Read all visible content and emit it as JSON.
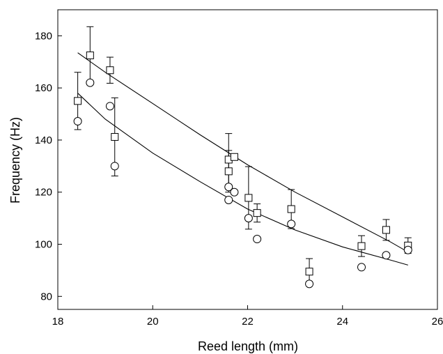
{
  "chart_data": {
    "type": "scatter",
    "title": "",
    "xlabel": "Reed length (mm)",
    "ylabel": "Frequency (Hz)",
    "xlim": [
      18,
      26
    ],
    "ylim": [
      75,
      190
    ],
    "xticks": [
      18,
      20,
      22,
      24,
      26
    ],
    "yticks": [
      80,
      100,
      120,
      140,
      160,
      180
    ],
    "grid": false,
    "legend": "none",
    "series": [
      {
        "marker": "square",
        "points": [
          {
            "x": 18.42,
            "y": 155.0,
            "err": 11.0
          },
          {
            "x": 18.68,
            "y": 172.5,
            "err": 11.0
          },
          {
            "x": 19.1,
            "y": 166.8,
            "err": 5.0
          },
          {
            "x": 19.2,
            "y": 141.2,
            "err": 15.0
          },
          {
            "x": 21.6,
            "y": 132.5,
            "err": 10.0
          },
          {
            "x": 21.6,
            "y": 128.0,
            "err": 8.0
          },
          {
            "x": 21.72,
            "y": 133.5,
            "err": 1.0
          },
          {
            "x": 22.02,
            "y": 117.8,
            "err": 12.0
          },
          {
            "x": 22.2,
            "y": 112.0,
            "err": 3.5
          },
          {
            "x": 22.92,
            "y": 113.5,
            "err": 7.5
          },
          {
            "x": 23.3,
            "y": 89.5,
            "err": 5.0
          },
          {
            "x": 24.4,
            "y": 99.3,
            "err": 4.0
          },
          {
            "x": 24.92,
            "y": 105.5,
            "err": 4.0
          },
          {
            "x": 25.38,
            "y": 99.5,
            "err": 3.0
          }
        ],
        "fit": [
          {
            "x": 18.42,
            "y": 173.5
          },
          {
            "x": 19.0,
            "y": 166.0
          },
          {
            "x": 20.0,
            "y": 154.0
          },
          {
            "x": 21.0,
            "y": 142.0
          },
          {
            "x": 22.0,
            "y": 130.5
          },
          {
            "x": 23.0,
            "y": 120.0
          },
          {
            "x": 24.0,
            "y": 110.5
          },
          {
            "x": 25.0,
            "y": 101.0
          },
          {
            "x": 25.38,
            "y": 97.0
          }
        ]
      },
      {
        "marker": "circle",
        "points": [
          {
            "x": 18.42,
            "y": 147.2
          },
          {
            "x": 18.68,
            "y": 162.0
          },
          {
            "x": 19.1,
            "y": 153.0
          },
          {
            "x": 19.2,
            "y": 130.0
          },
          {
            "x": 21.6,
            "y": 122.0
          },
          {
            "x": 21.6,
            "y": 117.0
          },
          {
            "x": 21.72,
            "y": 120.0
          },
          {
            "x": 22.02,
            "y": 110.0
          },
          {
            "x": 22.2,
            "y": 102.0
          },
          {
            "x": 22.92,
            "y": 107.8
          },
          {
            "x": 23.3,
            "y": 84.8
          },
          {
            "x": 24.4,
            "y": 91.2
          },
          {
            "x": 24.92,
            "y": 95.8
          },
          {
            "x": 25.38,
            "y": 97.8
          }
        ],
        "fit": [
          {
            "x": 18.42,
            "y": 158.0
          },
          {
            "x": 19.0,
            "y": 148.0
          },
          {
            "x": 20.0,
            "y": 135.0
          },
          {
            "x": 21.0,
            "y": 124.0
          },
          {
            "x": 22.0,
            "y": 113.5
          },
          {
            "x": 23.0,
            "y": 105.5
          },
          {
            "x": 24.0,
            "y": 99.0
          },
          {
            "x": 25.0,
            "y": 94.0
          },
          {
            "x": 25.38,
            "y": 92.0
          }
        ]
      }
    ]
  }
}
